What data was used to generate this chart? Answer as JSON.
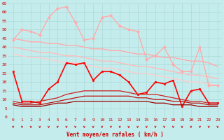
{
  "title": "",
  "xlabel": "Vent moyen/en rafales ( km/h )",
  "ylabel": "",
  "xlim": [
    -0.5,
    23.5
  ],
  "ylim": [
    0,
    65
  ],
  "yticks": [
    0,
    5,
    10,
    15,
    20,
    25,
    30,
    35,
    40,
    45,
    50,
    55,
    60,
    65
  ],
  "xticks": [
    0,
    1,
    2,
    3,
    4,
    5,
    6,
    7,
    8,
    9,
    10,
    11,
    12,
    13,
    14,
    15,
    16,
    17,
    18,
    19,
    20,
    21,
    22,
    23
  ],
  "background_color": "#c5ecec",
  "grid_color": "#aad8d8",
  "lines": [
    {
      "y": [
        45,
        44,
        43,
        43,
        42,
        42,
        41,
        41,
        40,
        39,
        39,
        38,
        38,
        37,
        36,
        36,
        35,
        34,
        34,
        33,
        32,
        32,
        31,
        29
      ],
      "color": "#ffaaaa",
      "lw": 1.0,
      "marker": null
    },
    {
      "y": [
        40,
        39,
        38,
        37,
        37,
        36,
        35,
        35,
        34,
        33,
        32,
        32,
        31,
        30,
        29,
        29,
        28,
        27,
        26,
        25,
        24,
        24,
        23,
        22
      ],
      "color": "#ffbbbb",
      "lw": 1.0,
      "marker": null
    },
    {
      "y": [
        36,
        35,
        34,
        34,
        33,
        32,
        31,
        31,
        30,
        29,
        28,
        28,
        27,
        26,
        25,
        25,
        24,
        23,
        22,
        21,
        20,
        20,
        19,
        18
      ],
      "color": "#ffcccc",
      "lw": 1.0,
      "marker": null
    },
    {
      "y": [
        44,
        50,
        49,
        47,
        57,
        62,
        63,
        54,
        44,
        45,
        57,
        58,
        52,
        50,
        49,
        33,
        35,
        40,
        30,
        26,
        26,
        40,
        18,
        18
      ],
      "color": "#ffaaaa",
      "lw": 1.0,
      "marker": "D",
      "ms": 2.0
    },
    {
      "y": [
        26,
        9,
        9,
        8,
        16,
        20,
        31,
        30,
        31,
        21,
        26,
        26,
        24,
        20,
        13,
        14,
        20,
        19,
        21,
        6,
        15,
        16,
        8,
        8
      ],
      "color": "#ff0000",
      "lw": 1.2,
      "marker": "s",
      "ms": 2.0
    },
    {
      "y": [
        9,
        8,
        8,
        9,
        10,
        11,
        13,
        14,
        15,
        15,
        15,
        15,
        15,
        14,
        13,
        13,
        13,
        12,
        11,
        10,
        9,
        9,
        8,
        8
      ],
      "color": "#cc2222",
      "lw": 0.9,
      "marker": null
    },
    {
      "y": [
        8,
        7,
        7,
        7,
        8,
        9,
        10,
        11,
        12,
        12,
        12,
        12,
        12,
        12,
        11,
        11,
        10,
        10,
        9,
        9,
        8,
        8,
        7,
        7
      ],
      "color": "#bb1111",
      "lw": 0.9,
      "marker": null
    },
    {
      "y": [
        7,
        6,
        6,
        6,
        7,
        8,
        8,
        9,
        9,
        9,
        9,
        9,
        9,
        9,
        9,
        9,
        8,
        8,
        7,
        7,
        7,
        6,
        6,
        6
      ],
      "color": "#990000",
      "lw": 0.9,
      "marker": null
    }
  ],
  "arrow_color": "#cc0000",
  "tick_color": "#cc0000",
  "label_color": "#cc0000",
  "tick_fontsize": 4.5,
  "xlabel_fontsize": 5.5
}
